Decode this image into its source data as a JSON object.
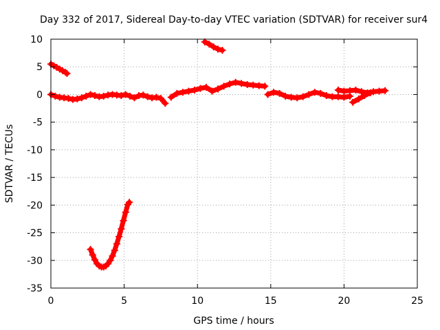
{
  "chart_data": {
    "type": "scatter",
    "title": "Day 332 of 2017, Sidereal Day-to-day VTEC variation (SDTVAR) for receiver sur4",
    "xlabel": "GPS time / hours",
    "ylabel": "SDTVAR / TECUs",
    "xlim": [
      0,
      25
    ],
    "ylim": [
      -35,
      10
    ],
    "xticks": [
      0,
      5,
      10,
      15,
      20,
      25
    ],
    "yticks": [
      -35,
      -30,
      -25,
      -20,
      -15,
      -10,
      -5,
      0,
      5,
      10
    ],
    "grid": true,
    "marker": "plus",
    "colors": {
      "series": "#ff0000",
      "grid": "#a0a0a0",
      "axis": "#000000"
    },
    "series": [
      {
        "name": "sur4",
        "segments": [
          {
            "x": [
              0,
              0.2,
              0.4,
              0.6,
              0.8,
              1.0,
              1.1
            ],
            "y": [
              5.5,
              5.2,
              4.9,
              4.6,
              4.3,
              4.0,
              3.8
            ]
          },
          {
            "x": [
              0,
              0.3,
              0.6,
              0.9,
              1.2,
              1.5,
              1.8,
              2.1,
              2.4,
              2.7,
              3.0,
              3.3,
              3.6,
              3.9,
              4.2,
              4.5,
              4.8,
              5.1,
              5.4,
              5.7,
              6.0,
              6.3,
              6.6,
              6.9,
              7.2,
              7.5,
              7.8
            ],
            "y": [
              0,
              -0.3,
              -0.5,
              -0.6,
              -0.7,
              -0.9,
              -0.8,
              -0.6,
              -0.3,
              0,
              -0.2,
              -0.4,
              -0.3,
              -0.1,
              0,
              -0.1,
              -0.2,
              0,
              -0.3,
              -0.6,
              -0.2,
              -0.1,
              -0.4,
              -0.6,
              -0.5,
              -0.7,
              -1.6
            ]
          },
          {
            "x": [
              8.2,
              8.6,
              9.0,
              9.4,
              9.8,
              10.2,
              10.6,
              11.0,
              11.4,
              11.8,
              12.2,
              12.6,
              13.0,
              13.4,
              13.8,
              14.2,
              14.6
            ],
            "y": [
              -0.5,
              0.2,
              0.4,
              0.6,
              0.8,
              1.1,
              1.3,
              0.6,
              1.0,
              1.5,
              1.9,
              2.2,
              2.0,
              1.8,
              1.7,
              1.6,
              1.5
            ]
          },
          {
            "x": [
              10.5,
              10.8,
              11.1,
              11.4,
              11.7
            ],
            "y": [
              9.5,
              9.1,
              8.6,
              8.2,
              8.0
            ]
          },
          {
            "x": [
              14.8,
              15.2,
              15.6,
              16.0,
              16.4,
              16.8,
              17.2,
              17.6,
              18.0,
              18.4,
              18.8,
              19.2,
              19.6,
              20.0,
              20.4
            ],
            "y": [
              0,
              0.4,
              0.2,
              -0.3,
              -0.5,
              -0.6,
              -0.4,
              0,
              0.4,
              0.2,
              -0.2,
              -0.4,
              -0.4,
              -0.5,
              -0.3
            ]
          },
          {
            "x": [
              19.6,
              20.0,
              20.4,
              20.8,
              21.2,
              21.6,
              22.0,
              22.4,
              22.8
            ],
            "y": [
              0.8,
              0.6,
              0.7,
              0.8,
              0.5,
              0.3,
              0.5,
              0.6,
              0.7
            ]
          },
          {
            "x": [
              20.6,
              21.0,
              21.4,
              21.8
            ],
            "y": [
              -1.4,
              -0.8,
              -0.2,
              0.3
            ]
          },
          {
            "x": [
              2.7,
              2.85,
              3.0,
              3.15,
              3.3,
              3.45,
              3.6,
              3.75,
              3.9,
              4.05,
              4.2,
              4.35,
              4.5,
              4.65,
              4.8,
              4.95,
              5.1,
              5.25,
              5.35
            ],
            "y": [
              -28.0,
              -29.0,
              -29.9,
              -30.6,
              -31.0,
              -31.2,
              -31.2,
              -31.0,
              -30.6,
              -30.0,
              -29.2,
              -28.2,
              -27.0,
              -25.7,
              -24.3,
              -22.8,
              -21.3,
              -19.9,
              -19.5
            ]
          }
        ]
      }
    ]
  }
}
